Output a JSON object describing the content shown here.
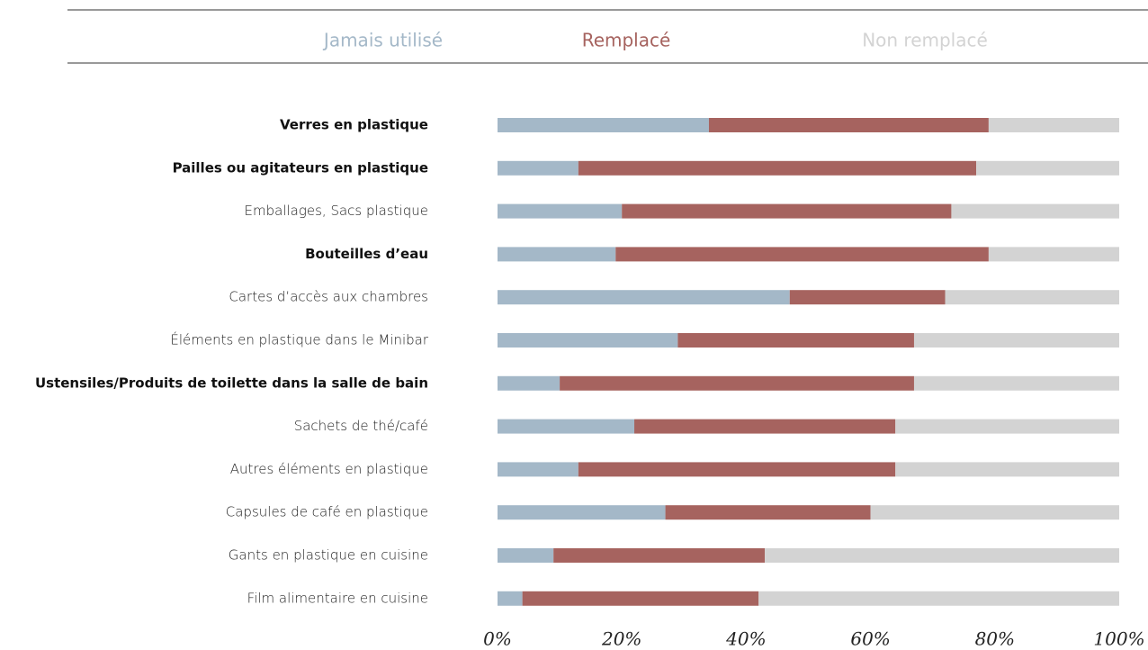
{
  "chart_data": {
    "type": "bar",
    "orientation": "horizontal",
    "stacked": true,
    "categories": [
      "Verres en plastique",
      "Pailles ou agitateurs en plastique",
      "Emballages, Sacs plastique",
      "Bouteilles d’eau",
      "Cartes d’accès aux chambres",
      "Éléments en plastique dans le Minibar",
      "Ustensiles/Produits de toilette dans la salle de bain",
      "Sachets de thé/café",
      "Autres éléments en plastique",
      "Capsules de café en plastique",
      "Gants en plastique en cuisine",
      "Film alimentaire en cuisine"
    ],
    "series": [
      {
        "name": "Jamais utilisé",
        "color": "#a4b8c8",
        "values": [
          34,
          13,
          20,
          19,
          47,
          29,
          10,
          22,
          13,
          27,
          9,
          4
        ]
      },
      {
        "name": "Remplacé",
        "color": "#a6635f",
        "values": [
          45,
          64,
          53,
          60,
          25,
          38,
          57,
          42,
          51,
          33,
          34,
          38
        ]
      },
      {
        "name": "Non remplacé",
        "color": "#d3d3d3",
        "values": [
          21,
          23,
          27,
          21,
          28,
          33,
          33,
          36,
          36,
          40,
          57,
          58
        ]
      }
    ],
    "xlim": [
      0,
      100
    ],
    "xticks": [
      {
        "value": 0,
        "label": "0%"
      },
      {
        "value": 20,
        "label": "20%"
      },
      {
        "value": 40,
        "label": "40%"
      },
      {
        "value": 60,
        "label": "60%"
      },
      {
        "value": 80,
        "label": "80%"
      },
      {
        "value": 100,
        "label": "100%"
      }
    ],
    "legend": "top",
    "grid": false
  }
}
